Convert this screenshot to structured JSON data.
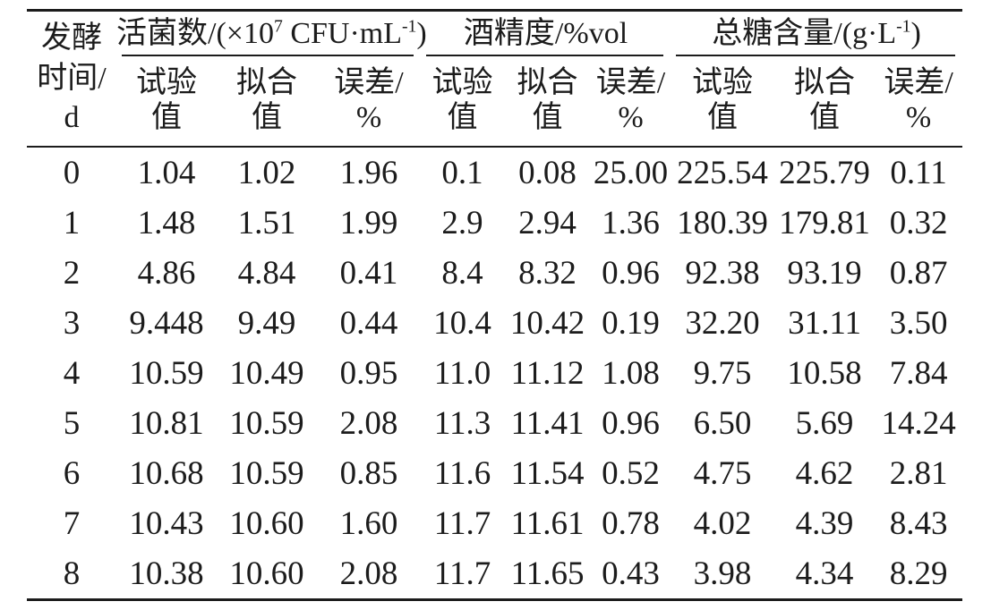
{
  "page": {
    "background": "#ffffff",
    "text_color": "#1c1c1c",
    "rule_color": "#1c1c1c"
  },
  "table": {
    "corner_header": "发酵\n时间/\nd",
    "group_viable": {
      "pre": "活菌数/(×10",
      "exp": "7",
      "mid": " CFU·mL",
      "exp2": "-1",
      "post": ")"
    },
    "group_alcohol": {
      "title": "酒精度/%vol"
    },
    "group_sugar": {
      "pre": "总糖含量/(g·L",
      "exp2": "-1",
      "post": ")"
    },
    "subheaders": [
      "试验\n值",
      "拟合\n值",
      "误差/\n%"
    ],
    "rows": [
      [
        "0",
        "1.04",
        "1.02",
        "1.96",
        "0.1",
        "0.08",
        "25.00",
        "225.54",
        "225.79",
        "0.11"
      ],
      [
        "1",
        "1.48",
        "1.51",
        "1.99",
        "2.9",
        "2.94",
        "1.36",
        "180.39",
        "179.81",
        "0.32"
      ],
      [
        "2",
        "4.86",
        "4.84",
        "0.41",
        "8.4",
        "8.32",
        "0.96",
        "92.38",
        "93.19",
        "0.87"
      ],
      [
        "3",
        "9.448",
        "9.49",
        "0.44",
        "10.4",
        "10.42",
        "0.19",
        "32.20",
        "31.11",
        "3.50"
      ],
      [
        "4",
        "10.59",
        "10.49",
        "0.95",
        "11.0",
        "11.12",
        "1.08",
        "9.75",
        "10.58",
        "7.84"
      ],
      [
        "5",
        "10.81",
        "10.59",
        "2.08",
        "11.3",
        "11.41",
        "0.96",
        "6.50",
        "5.69",
        "14.24"
      ],
      [
        "6",
        "10.68",
        "10.59",
        "0.85",
        "11.6",
        "11.54",
        "0.52",
        "4.75",
        "4.62",
        "2.81"
      ],
      [
        "7",
        "10.43",
        "10.60",
        "1.60",
        "11.7",
        "11.61",
        "0.78",
        "4.02",
        "4.39",
        "8.43"
      ],
      [
        "8",
        "10.38",
        "10.60",
        "2.08",
        "11.7",
        "11.65",
        "0.43",
        "3.98",
        "4.34",
        "8.29"
      ]
    ]
  }
}
